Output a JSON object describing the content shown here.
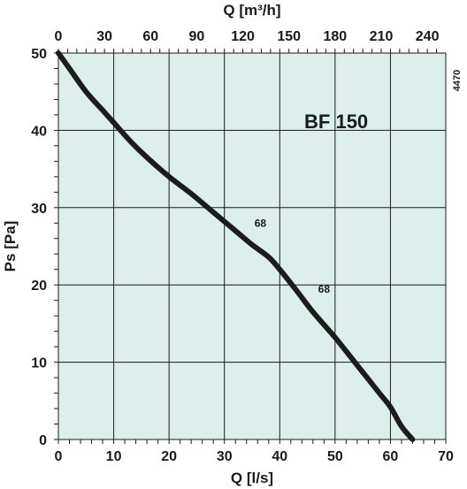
{
  "chart_data": {
    "type": "line",
    "xlabel": "Q [l/s]",
    "x2label": "Q [m³/h]",
    "ylabel": "Ps [Pa]",
    "xlim": [
      0,
      70
    ],
    "x2lim": [
      0,
      252
    ],
    "ylim": [
      0,
      50
    ],
    "x_ticks": [
      "0",
      "10",
      "20",
      "30",
      "40",
      "50",
      "60",
      "70"
    ],
    "x2_ticks": [
      "0",
      "30",
      "60",
      "90",
      "120",
      "150",
      "180",
      "210",
      "240"
    ],
    "y_ticks": [
      "0",
      "10",
      "20",
      "30",
      "40",
      "50"
    ],
    "grid": true,
    "series_label": "BF 150",
    "side_code": "4470",
    "annotations": [
      {
        "text": "68",
        "x": 36.5,
        "y": 27.5
      },
      {
        "text": "68",
        "x": 48,
        "y": 19
      }
    ],
    "series": [
      {
        "name": "BF 150",
        "points": [
          [
            0,
            50
          ],
          [
            2,
            48
          ],
          [
            5,
            45
          ],
          [
            8,
            42.6
          ],
          [
            10,
            41
          ],
          [
            13,
            38.6
          ],
          [
            16,
            36.5
          ],
          [
            20,
            34
          ],
          [
            24,
            31.8
          ],
          [
            28,
            29.4
          ],
          [
            32,
            27
          ],
          [
            35,
            25.2
          ],
          [
            38,
            23.6
          ],
          [
            40,
            22
          ],
          [
            43,
            19.3
          ],
          [
            46,
            16.5
          ],
          [
            50,
            13.2
          ],
          [
            54,
            9.6
          ],
          [
            58,
            6
          ],
          [
            60,
            4.2
          ],
          [
            62,
            1.7
          ],
          [
            64,
            0
          ]
        ]
      }
    ],
    "colors": {
      "plot_bg": "#dcefea",
      "grid": "#1a1a1a",
      "curve": "#1c1c1c"
    }
  }
}
